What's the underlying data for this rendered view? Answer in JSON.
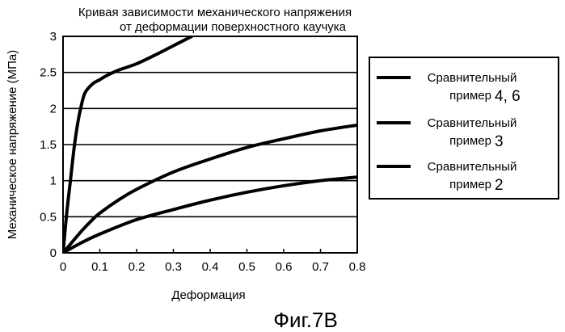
{
  "chart_data": {
    "type": "line",
    "title": "Кривая зависимости механического напряжения",
    "subtitle": "от деформации поверхностного каучука",
    "xlabel": "Деформация",
    "ylabel": "Механическое напряжение  (МПа)",
    "xlim": [
      0,
      0.8
    ],
    "ylim": [
      0,
      3
    ],
    "xticks": [
      "0",
      "0.1",
      "0.2",
      "0.3",
      "0.4",
      "0.5",
      "0.6",
      "0.7",
      "0.8"
    ],
    "yticks": [
      "0",
      "0.5",
      "1",
      "1.5",
      "2",
      "2.5",
      "3"
    ],
    "grid": "horizontal",
    "legend_position": "right",
    "series": [
      {
        "name": "Сравнительный пример 4, 6",
        "legend_line1": "Сравнительный",
        "legend_line2": "пример",
        "legend_number": "4, 6",
        "x": [
          0,
          0.01,
          0.02,
          0.03,
          0.04,
          0.05,
          0.06,
          0.08,
          0.1,
          0.12,
          0.15,
          0.2,
          0.25,
          0.3,
          0.35
        ],
        "y": [
          0,
          0.55,
          1.0,
          1.45,
          1.8,
          2.05,
          2.22,
          2.34,
          2.4,
          2.46,
          2.53,
          2.62,
          2.74,
          2.87,
          3.0
        ]
      },
      {
        "name": "Сравнительный пример 3",
        "legend_line1": "Сравнительный",
        "legend_line2": "пример",
        "legend_number": "3",
        "x": [
          0,
          0.02,
          0.05,
          0.08,
          0.1,
          0.15,
          0.2,
          0.3,
          0.4,
          0.5,
          0.6,
          0.7,
          0.8
        ],
        "y": [
          0,
          0.12,
          0.3,
          0.46,
          0.55,
          0.73,
          0.88,
          1.12,
          1.3,
          1.46,
          1.58,
          1.69,
          1.77
        ]
      },
      {
        "name": "Сравнительный пример 2",
        "legend_line1": "Сравнительный",
        "legend_line2": "пример",
        "legend_number": "2",
        "x": [
          0,
          0.05,
          0.1,
          0.2,
          0.3,
          0.4,
          0.5,
          0.6,
          0.7,
          0.8
        ],
        "y": [
          0,
          0.14,
          0.26,
          0.46,
          0.6,
          0.73,
          0.84,
          0.93,
          1.0,
          1.05
        ]
      }
    ]
  },
  "figure_caption": "Фиг.7В",
  "colors": {
    "line": "#000000",
    "grid": "#000000",
    "background": "#ffffff"
  }
}
